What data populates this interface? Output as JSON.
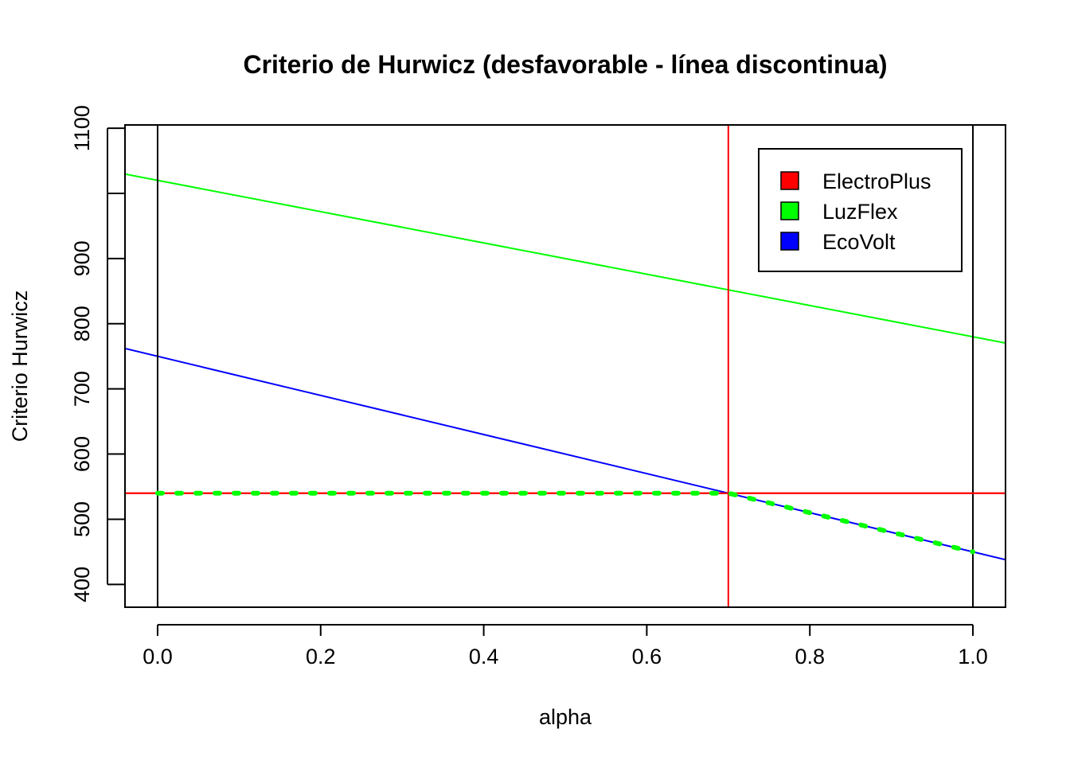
{
  "chart_data": {
    "type": "line",
    "title": "Criterio de Hurwicz (desfavorable - línea discontinua)",
    "xlabel": "alpha",
    "ylabel": "Criterio Hurwicz",
    "xlim": [
      -0.04,
      1.04
    ],
    "ylim": [
      365,
      1105
    ],
    "x_ticks": [
      "0.0",
      "0.2",
      "0.4",
      "0.6",
      "0.8",
      "1.0"
    ],
    "x_tick_values": [
      0,
      0.2,
      0.4,
      0.6,
      0.8,
      1.0
    ],
    "y_ticks": [
      "400",
      "500",
      "600",
      "700",
      "800",
      "900",
      "1000",
      "1100"
    ],
    "y_tick_values": [
      400,
      500,
      600,
      700,
      800,
      900,
      1000,
      1100
    ],
    "y_tick_labels_shown": [
      "400",
      "500",
      "600",
      "700",
      "800",
      "900",
      "",
      "1100"
    ],
    "series": [
      {
        "name": "ElectroPlus",
        "color": "#ff0000",
        "intercept": 540,
        "slope": 0
      },
      {
        "name": "LuzFlex",
        "color": "#00ff00",
        "intercept": 1020,
        "slope": -240
      },
      {
        "name": "EcoVolt",
        "color": "#0000ff",
        "intercept": 750,
        "slope": -300
      }
    ],
    "minimum_envelope": {
      "color": "#00ff00",
      "style": "dotted",
      "alpha": [
        0,
        0.7,
        1.0
      ],
      "value": [
        540,
        540,
        450
      ]
    },
    "reference_lines": {
      "vertical": [
        {
          "x": 0,
          "color": "#000000"
        },
        {
          "x": 1,
          "color": "#000000"
        },
        {
          "x": 0.7,
          "color": "#ff0000"
        }
      ],
      "horizontal": [
        {
          "y": 540,
          "color": "#ff0000"
        }
      ]
    },
    "legend": {
      "position": "top-right",
      "entries": [
        {
          "label": "ElectroPlus",
          "color": "#ff0000"
        },
        {
          "label": "LuzFlex",
          "color": "#00ff00"
        },
        {
          "label": "EcoVolt",
          "color": "#0000ff"
        }
      ]
    },
    "grid": false
  }
}
